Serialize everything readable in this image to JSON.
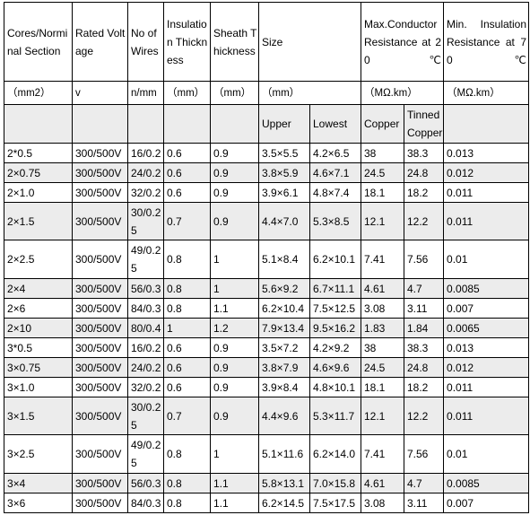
{
  "table": {
    "header": {
      "cores": "Cores/Norminal Section",
      "voltage": "Rated Voltage",
      "wires": "No of Wires",
      "insulation": "Insulation Thickness",
      "sheath": "Sheath Thickness",
      "size": "Size",
      "maxres": "Max.Conductor Resistance at 20℃",
      "minres": "Min. Insulation Resistance at 70℃"
    },
    "units": {
      "cores": "（mm2）",
      "voltage": "v",
      "wires": "n/mm",
      "insulation": "（mm）",
      "sheath": "（mm）",
      "size": "（mm）",
      "maxres": "（MΩ.km）",
      "minres": "（MΩ.km）"
    },
    "sub": {
      "upper": "Upper",
      "lowest": "Lowest",
      "copper": "Copper",
      "tinned": "Tinned Copper"
    },
    "rows": [
      [
        "2*0.5",
        "300/500V",
        "16/0.2",
        "0.6",
        "0.9",
        "3.5×5.5",
        "4.2×6.5",
        "38",
        "38.3",
        "0.013"
      ],
      [
        "2×0.75",
        "300/500V",
        "24/0.2",
        "0.6",
        "0.9",
        "3.8×5.9",
        "4.6×7.1",
        "24.5",
        "24.8",
        "0.012"
      ],
      [
        "2×1.0",
        "300/500V",
        "32/0.2",
        "0.6",
        "0.9",
        "3.9×6.1",
        "4.8×7.4",
        "18.1",
        "18.2",
        "0.011"
      ],
      [
        "2×1.5",
        "300/500V",
        "30/0.25",
        "0.7",
        "0.9",
        "4.4×7.0",
        "5.3×8.5",
        "12.1",
        "12.2",
        "0.011"
      ],
      [
        "2×2.5",
        "300/500V",
        "49/0.25",
        "0.8",
        "1",
        "5.1×8.4",
        "6.2×10.1",
        "7.41",
        "7.56",
        "0.01"
      ],
      [
        "2×4",
        "300/500V",
        "56/0.3",
        "0.8",
        "1",
        "5.6×9.2",
        "6.7×11.1",
        "4.61",
        "4.7",
        "0.0085"
      ],
      [
        "2×6",
        "300/500V",
        "84/0.3",
        "0.8",
        "1.1",
        "6.2×10.4",
        "7.5×12.5",
        "3.08",
        "3.11",
        "0.007"
      ],
      [
        "2×10",
        "300/500V",
        "80/0.4",
        "1",
        "1.2",
        "7.9×13.4",
        "9.5×16.2",
        "1.83",
        "1.84",
        "0.0065"
      ],
      [
        "3*0.5",
        "300/500V",
        "16/0.2",
        "0.6",
        "0.9",
        "3.5×7.2",
        "4.2×9.2",
        "38",
        "38.3",
        "0.013"
      ],
      [
        "3×0.75",
        "300/500V",
        "24/0.2",
        "0.6",
        "0.9",
        "3.8×7.9",
        "4.6×9.6",
        "24.5",
        "24.8",
        "0.012"
      ],
      [
        "3×1.0",
        "300/500V",
        "32/0.2",
        "0.6",
        "0.9",
        "3.9×8.4",
        "4.8×10.1",
        "18.1",
        "18.2",
        "0.011"
      ],
      [
        "3×1.5",
        "300/500V",
        "30/0.25",
        "0.7",
        "0.9",
        "4.4×9.6",
        "5.3×11.7",
        "12.1",
        "12.2",
        "0.011"
      ],
      [
        "3×2.5",
        "300/500V",
        "49/0.25",
        "0.8",
        "1",
        "5.1×11.6",
        "6.2×14.0",
        "7.41",
        "7.56",
        "0.01"
      ],
      [
        "3×4",
        "300/500V",
        "56/0.3",
        "0.8",
        "1.1",
        "5.8×13.1",
        "7.0×15.8",
        "4.61",
        "4.7",
        "0.0085"
      ],
      [
        "3×6",
        "300/500V",
        "84/0.3",
        "0.8",
        "1.1",
        "6.2×14.5",
        "7.5×17.5",
        "3.08",
        "3.11",
        "0.007"
      ]
    ]
  }
}
